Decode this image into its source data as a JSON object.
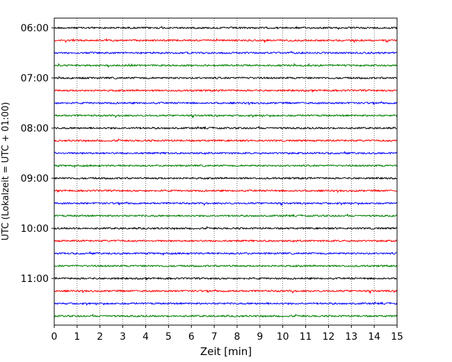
{
  "chart_data": {
    "type": "line",
    "title": "",
    "xlabel": "Zeit  [min]",
    "ylabel": "UTC (Lokalzeit = UTC + 01:00)",
    "xlim": [
      0,
      15
    ],
    "x_ticks": [
      "0",
      "1",
      "2",
      "3",
      "4",
      "5",
      "6",
      "7",
      "8",
      "9",
      "10",
      "11",
      "12",
      "13",
      "14",
      "15"
    ],
    "y_ticks": [
      "06:00",
      "07:00",
      "08:00",
      "09:00",
      "10:00",
      "11:00"
    ],
    "grid": "vertical dotted",
    "trace_colors": [
      "#000000",
      "#ff0000",
      "#0000ff",
      "#008000"
    ],
    "trace_count": 24,
    "trace_interval_minutes": 15,
    "first_trace_time": "06:00",
    "series_description": "seismogram traces, one per 15-minute interval, cycling black/red/blue/green"
  }
}
